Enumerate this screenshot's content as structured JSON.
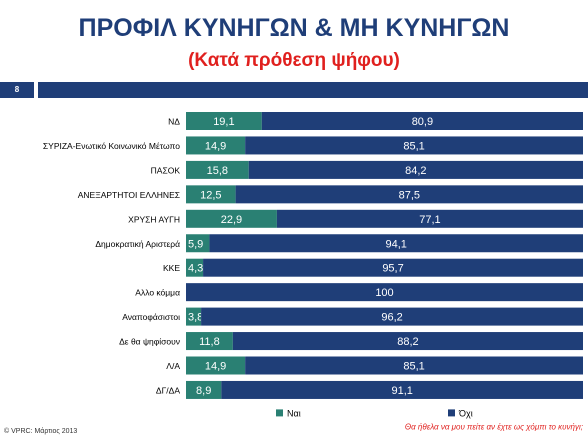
{
  "header": {
    "title": "ΠΡΟΦΙΛ ΚΥΝΗΓΩΝ & ΜΗ ΚΥΝΗΓΩΝ",
    "subtitle": "(Κατά πρόθεση ψήφου)",
    "page_number": "8"
  },
  "colors": {
    "title": "#1f3e78",
    "subtitle": "#e0201e",
    "header_bar": "#1f3e78",
    "yes": "#2a8073",
    "no": "#1f3e78",
    "question": "#e0201e"
  },
  "chart_data": {
    "type": "bar",
    "orientation": "horizontal",
    "stacked": true,
    "percent": true,
    "question": "Θα ήθελα να μου πείτε αν έχτε ως χόμπι το κυνήγι;",
    "categories": [
      "ΝΔ",
      "ΣΥΡΙΖΑ-Ενωτικό Κοινωνικό Μέτωπο",
      "ΠΑΣΟΚ",
      "ΑΝΕΞΑΡΤΗΤΟΙ ΕΛΛΗΝΕΣ",
      "ΧΡΥΣΗ ΑΥΓΗ",
      "Δημοκρατική Αριστερά",
      "ΚΚΕ",
      "Αλλο κόμμα",
      "Αναποφάσιστοι",
      "Δε θα ψηφίσουν",
      "Λ/Α",
      "ΔΓ/ΔΑ"
    ],
    "series": [
      {
        "name": "Ναι",
        "values": [
          19.1,
          14.9,
          15.8,
          12.5,
          22.9,
          5.9,
          4.3,
          0,
          3.8,
          11.8,
          14.9,
          8.9
        ],
        "labels": [
          "19,1",
          "14,9",
          "15,8",
          "12,5",
          "22,9",
          "5,9",
          "4,3",
          "0",
          "3,8",
          "11,8",
          "14,9",
          "8,9"
        ]
      },
      {
        "name": "Όχι",
        "values": [
          80.9,
          85.1,
          84.2,
          87.5,
          77.1,
          94.1,
          95.7,
          100,
          96.2,
          88.2,
          85.1,
          91.1
        ],
        "labels": [
          "80,9",
          "85,1",
          "84,2",
          "87,5",
          "77,1",
          "94,1",
          "95,7",
          "100",
          "96,2",
          "88,2",
          "85,1",
          "91,1"
        ]
      }
    ],
    "xlim": [
      0,
      100
    ],
    "legend_position": "bottom"
  },
  "footer": {
    "source": "© VPRC: Μάρτιος 2013"
  }
}
